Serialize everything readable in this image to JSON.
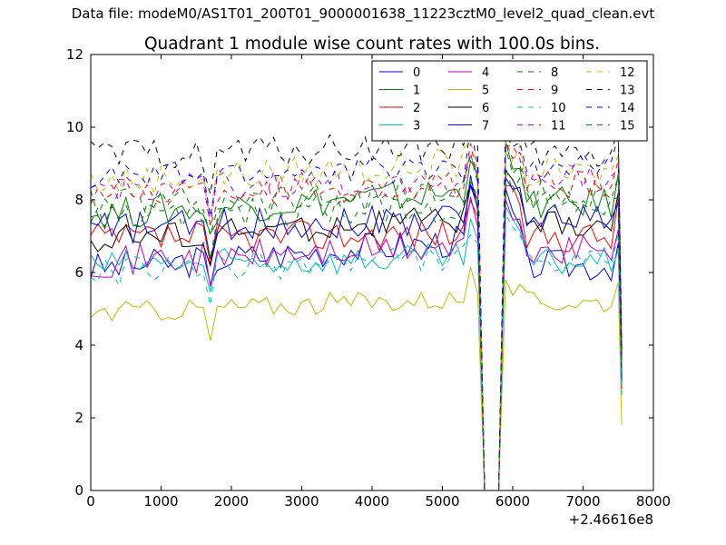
{
  "suptitle": "Data file: modeM0/AS1T01_200T01_9000001638_11223cztM0_level2_quad_clean.evt",
  "chart_data": {
    "type": "line",
    "title": "Quadrant 1 module wise count rates with 100.0s bins.",
    "xlabel": "",
    "ylabel": "",
    "x_offset_label": "+2.46616e8",
    "xlim": [
      0,
      8000
    ],
    "ylim": [
      0,
      12
    ],
    "xticks": [
      0,
      1000,
      2000,
      3000,
      4000,
      5000,
      6000,
      7000,
      8000
    ],
    "yticks": [
      0,
      2,
      4,
      6,
      8,
      10,
      12
    ],
    "grid": false,
    "legend": {
      "placement": "top-right",
      "columns": 4
    },
    "gap": {
      "last_valid_before": 5500,
      "zero_from": 5600,
      "zero_to": 5800,
      "first_valid_after": 5900,
      "end_drop": 7550
    },
    "series": [
      {
        "name": "0",
        "color": "#0000ff",
        "dash": "solid",
        "pre_level": 6.1,
        "pre_end": 6.9,
        "peak_pre": 8.4,
        "post_peak": 8.3,
        "post_level": 6.2,
        "end_value": 3.0,
        "noise": 0.45
      },
      {
        "name": "1",
        "color": "#008000",
        "dash": "solid",
        "pre_level": 7.6,
        "pre_end": 8.2,
        "peak_pre": 9.5,
        "post_peak": 9.6,
        "post_level": 7.9,
        "end_value": 3.3,
        "noise": 0.45
      },
      {
        "name": "2",
        "color": "#ff0000",
        "dash": "solid",
        "pre_level": 6.9,
        "pre_end": 7.1,
        "peak_pre": 8.2,
        "post_peak": 8.4,
        "post_level": 7.0,
        "end_value": 3.1,
        "noise": 0.45
      },
      {
        "name": "3",
        "color": "#00bfbf",
        "dash": "solid",
        "pre_level": 6.2,
        "pre_end": 6.4,
        "peak_pre": 7.5,
        "post_peak": 7.8,
        "post_level": 6.3,
        "end_value": 2.9,
        "noise": 0.4
      },
      {
        "name": "4",
        "color": "#bf00bf",
        "dash": "solid",
        "pre_level": 6.3,
        "pre_end": 6.7,
        "peak_pre": 7.9,
        "post_peak": 8.0,
        "post_level": 6.6,
        "end_value": 2.8,
        "noise": 0.45
      },
      {
        "name": "5",
        "color": "#bfbf00",
        "dash": "solid",
        "pre_level": 4.9,
        "pre_end": 5.3,
        "peak_pre": 5.9,
        "post_peak": 5.8,
        "post_level": 5.2,
        "end_value": 1.8,
        "noise": 0.3
      },
      {
        "name": "6",
        "color": "#000000",
        "dash": "solid",
        "pre_level": 6.9,
        "pre_end": 7.5,
        "peak_pre": 8.7,
        "post_peak": 8.8,
        "post_level": 7.3,
        "end_value": 3.2,
        "noise": 0.4
      },
      {
        "name": "7",
        "color": "#0000ff",
        "dash": "solid",
        "pre_level": 7.2,
        "pre_end": 7.5,
        "peak_pre": 8.5,
        "post_peak": 8.6,
        "post_level": 7.6,
        "end_value": 3.0,
        "noise": 0.45
      },
      {
        "name": "8",
        "color": "#008000",
        "dash": "dashed",
        "pre_level": 7.9,
        "pre_end": 8.2,
        "peak_pre": 9.2,
        "post_peak": 9.4,
        "post_level": 8.1,
        "end_value": 3.4,
        "noise": 0.45
      },
      {
        "name": "9",
        "color": "#ff0000",
        "dash": "dashed",
        "pre_level": 8.2,
        "pre_end": 8.4,
        "peak_pre": 9.3,
        "post_peak": 9.5,
        "post_level": 8.4,
        "end_value": 3.5,
        "noise": 0.4
      },
      {
        "name": "10",
        "color": "#00bfbf",
        "dash": "dashed",
        "pre_level": 6.0,
        "pre_end": 6.4,
        "peak_pre": 7.4,
        "post_peak": 7.6,
        "post_level": 6.2,
        "end_value": 2.6,
        "noise": 0.4
      },
      {
        "name": "11",
        "color": "#bf00bf",
        "dash": "dashed",
        "pre_level": 8.3,
        "pre_end": 8.5,
        "peak_pre": 9.4,
        "post_peak": 9.6,
        "post_level": 8.6,
        "end_value": 3.6,
        "noise": 0.4
      },
      {
        "name": "12",
        "color": "#bfbf00",
        "dash": "dashed",
        "pre_level": 8.5,
        "pre_end": 9.0,
        "peak_pre": 9.6,
        "post_peak": 9.8,
        "post_level": 8.7,
        "end_value": 3.7,
        "noise": 0.45
      },
      {
        "name": "13",
        "color": "#000000",
        "dash": "dashed",
        "pre_level": 9.2,
        "pre_end": 9.5,
        "peak_pre": 10.3,
        "post_peak": 10.4,
        "post_level": 9.2,
        "end_value": 3.9,
        "noise": 0.45
      },
      {
        "name": "14",
        "color": "#0000ff",
        "dash": "dashed",
        "pre_level": 8.6,
        "pre_end": 8.9,
        "peak_pre": 9.7,
        "post_peak": 9.8,
        "post_level": 8.9,
        "end_value": 3.7,
        "noise": 0.4
      },
      {
        "name": "15",
        "color": "#008000",
        "dash": "dashed",
        "pre_level": 7.5,
        "pre_end": 7.8,
        "peak_pre": 8.8,
        "post_peak": 8.9,
        "post_level": 7.8,
        "end_value": 3.2,
        "noise": 0.45
      }
    ]
  }
}
